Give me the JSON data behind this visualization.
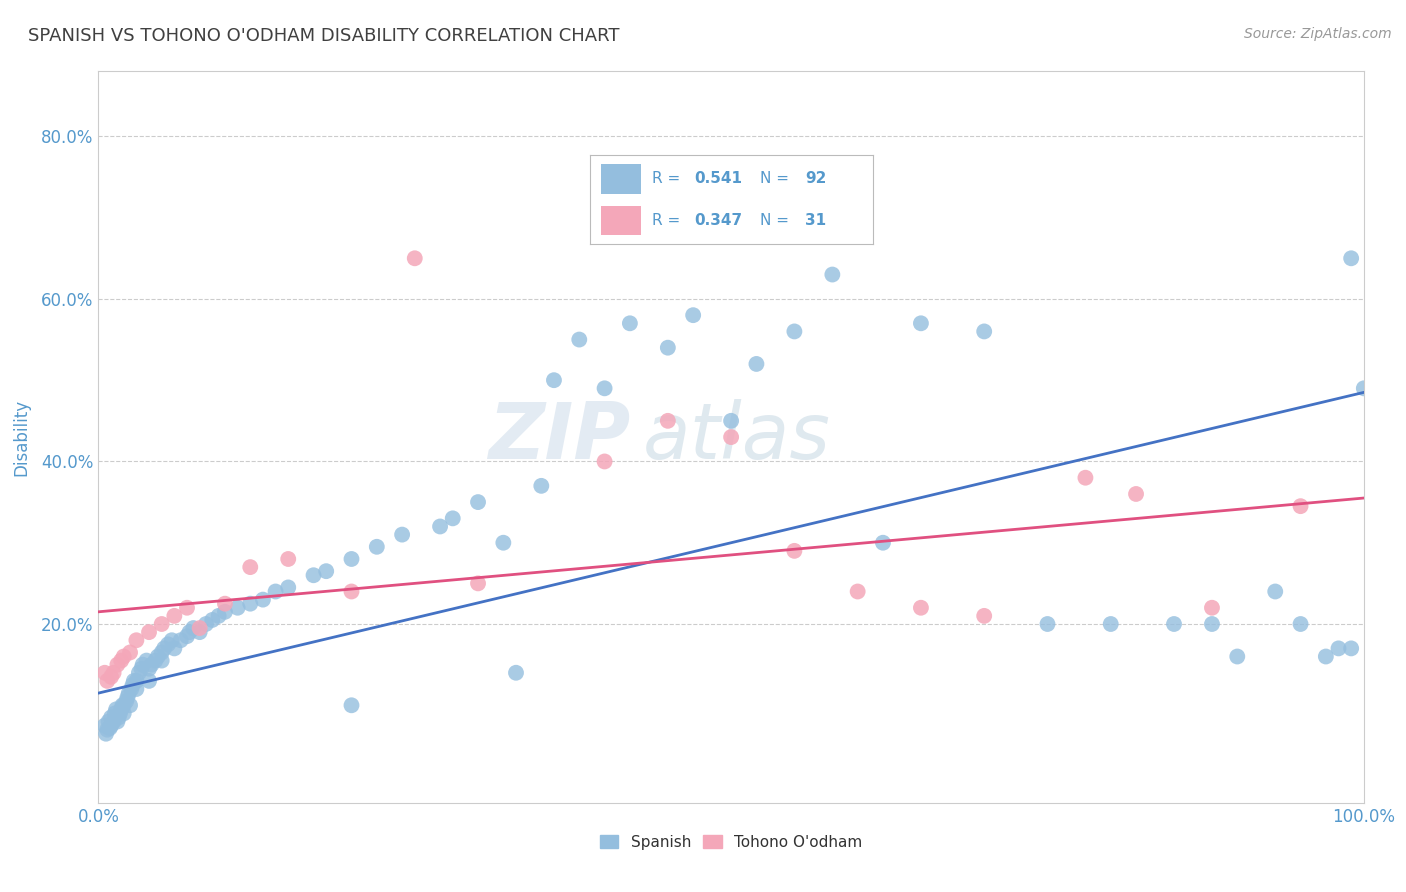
{
  "title": "SPANISH VS TOHONO O'ODHAM DISABILITY CORRELATION CHART",
  "source": "Source: ZipAtlas.com",
  "ylabel": "Disability",
  "watermark_part1": "ZIP",
  "watermark_part2": "atlas",
  "xlim": [
    0,
    1.0
  ],
  "ylim": [
    -0.02,
    0.88
  ],
  "xtick_positions": [
    0.0,
    1.0
  ],
  "xticklabels": [
    "0.0%",
    "100.0%"
  ],
  "ytick_positions": [
    0.2,
    0.4,
    0.6,
    0.8
  ],
  "yticklabels": [
    "20.0%",
    "40.0%",
    "60.0%",
    "80.0%"
  ],
  "legend_r1": "R = 0.541",
  "legend_n1": "N = 92",
  "legend_r2": "R = 0.347",
  "legend_n2": "N = 31",
  "blue_color": "#94bede",
  "pink_color": "#f4a7b9",
  "blue_line_color": "#4472c4",
  "pink_line_color": "#e05080",
  "title_color": "#404040",
  "tick_color": "#5599cc",
  "grid_color": "#cccccc",
  "background_color": "#ffffff",
  "legend_text_color": "#5599cc",
  "blue_line_x0": 0.0,
  "blue_line_x1": 1.0,
  "blue_line_y0": 0.115,
  "blue_line_y1": 0.485,
  "pink_line_x0": 0.0,
  "pink_line_x1": 1.0,
  "pink_line_y0": 0.215,
  "pink_line_y1": 0.355,
  "blue_x": [
    0.005,
    0.006,
    0.007,
    0.008,
    0.009,
    0.01,
    0.01,
    0.012,
    0.013,
    0.014,
    0.015,
    0.016,
    0.017,
    0.018,
    0.019,
    0.02,
    0.02,
    0.022,
    0.023,
    0.024,
    0.025,
    0.026,
    0.027,
    0.028,
    0.03,
    0.03,
    0.032,
    0.034,
    0.035,
    0.038,
    0.04,
    0.04,
    0.042,
    0.045,
    0.047,
    0.05,
    0.05,
    0.052,
    0.055,
    0.058,
    0.06,
    0.065,
    0.07,
    0.072,
    0.075,
    0.08,
    0.085,
    0.09,
    0.095,
    0.1,
    0.11,
    0.12,
    0.13,
    0.14,
    0.15,
    0.17,
    0.18,
    0.2,
    0.22,
    0.24,
    0.27,
    0.28,
    0.3,
    0.32,
    0.35,
    0.36,
    0.38,
    0.4,
    0.42,
    0.45,
    0.47,
    0.5,
    0.52,
    0.55,
    0.58,
    0.62,
    0.65,
    0.7,
    0.75,
    0.8,
    0.85,
    0.88,
    0.9,
    0.93,
    0.95,
    0.97,
    0.98,
    0.99,
    1.0,
    0.99,
    0.2,
    0.33
  ],
  "blue_y": [
    0.075,
    0.065,
    0.07,
    0.08,
    0.072,
    0.075,
    0.085,
    0.08,
    0.09,
    0.095,
    0.08,
    0.085,
    0.09,
    0.095,
    0.1,
    0.09,
    0.1,
    0.105,
    0.11,
    0.115,
    0.1,
    0.12,
    0.125,
    0.13,
    0.12,
    0.13,
    0.14,
    0.145,
    0.15,
    0.155,
    0.13,
    0.145,
    0.15,
    0.155,
    0.16,
    0.155,
    0.165,
    0.17,
    0.175,
    0.18,
    0.17,
    0.18,
    0.185,
    0.19,
    0.195,
    0.19,
    0.2,
    0.205,
    0.21,
    0.215,
    0.22,
    0.225,
    0.23,
    0.24,
    0.245,
    0.26,
    0.265,
    0.28,
    0.295,
    0.31,
    0.32,
    0.33,
    0.35,
    0.3,
    0.37,
    0.5,
    0.55,
    0.49,
    0.57,
    0.54,
    0.58,
    0.45,
    0.52,
    0.56,
    0.63,
    0.3,
    0.57,
    0.56,
    0.2,
    0.2,
    0.2,
    0.2,
    0.16,
    0.24,
    0.2,
    0.16,
    0.17,
    0.17,
    0.49,
    0.65,
    0.1,
    0.14
  ],
  "pink_x": [
    0.005,
    0.007,
    0.01,
    0.012,
    0.015,
    0.018,
    0.02,
    0.025,
    0.03,
    0.04,
    0.05,
    0.06,
    0.07,
    0.08,
    0.1,
    0.12,
    0.15,
    0.2,
    0.25,
    0.3,
    0.4,
    0.45,
    0.5,
    0.55,
    0.6,
    0.65,
    0.7,
    0.78,
    0.82,
    0.88,
    0.95
  ],
  "pink_y": [
    0.14,
    0.13,
    0.135,
    0.14,
    0.15,
    0.155,
    0.16,
    0.165,
    0.18,
    0.19,
    0.2,
    0.21,
    0.22,
    0.195,
    0.225,
    0.27,
    0.28,
    0.24,
    0.65,
    0.25,
    0.4,
    0.45,
    0.43,
    0.29,
    0.24,
    0.22,
    0.21,
    0.38,
    0.36,
    0.22,
    0.345
  ]
}
